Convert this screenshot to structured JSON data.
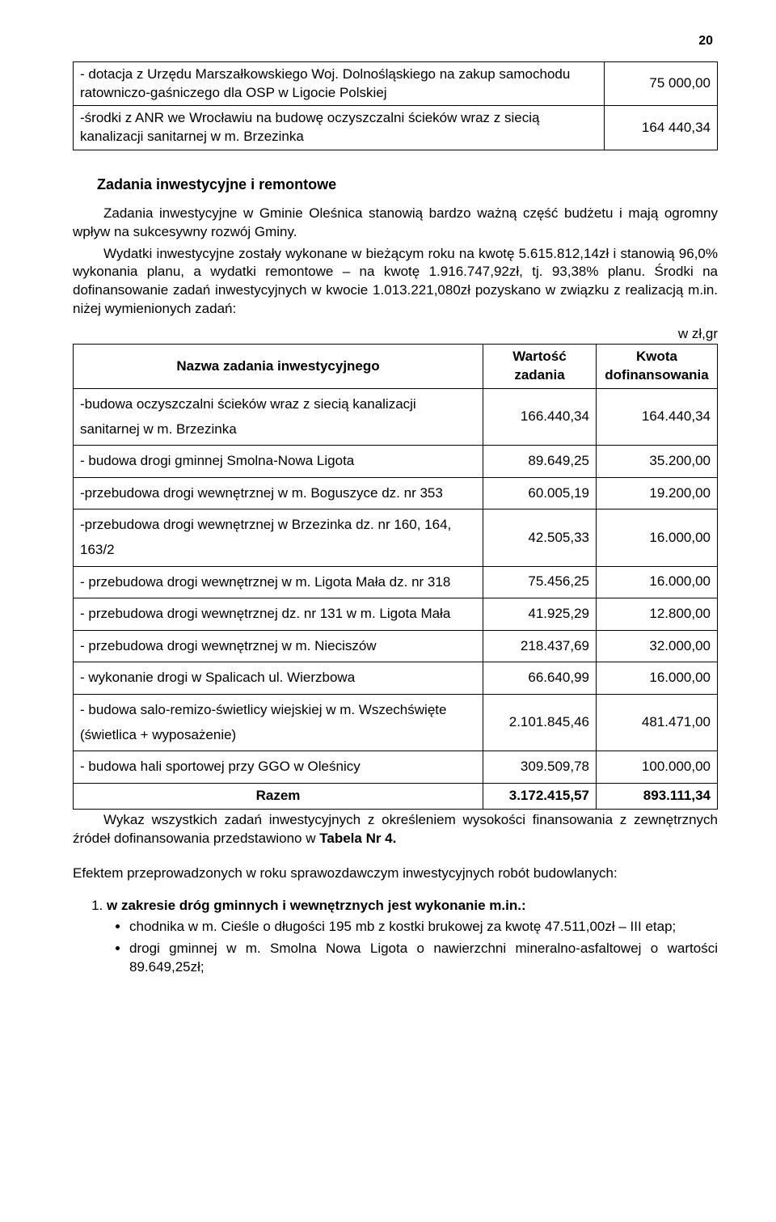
{
  "page_number": "20",
  "top_table": {
    "columns": [
      "desc",
      "amount"
    ],
    "column_align": [
      "left",
      "right"
    ],
    "rows": [
      {
        "desc": "- dotacja z Urzędu Marszałkowskiego Woj. Dolnośląskiego na zakup samochodu ratowniczo-gaśniczego dla OSP w Ligocie Polskiej",
        "amount": "75 000,00"
      },
      {
        "desc": "-środki z ANR we Wrocławiu na budowę oczyszczalni ścieków wraz z siecią kanalizacji sanitarnej w m. Brzezinka",
        "amount": "164 440,34"
      }
    ]
  },
  "section_heading": "Zadania inwestycyjne i remontowe",
  "paragraph1": "Zadania inwestycyjne w Gminie Oleśnica stanowią bardzo ważną część budżetu i mają ogromny wpływ na sukcesywny rozwój Gminy.",
  "paragraph2": "Wydatki inwestycyjne zostały wykonane w bieżącym roku na kwotę 5.615.812,14zł i stanowią 96,0% wykonania planu, a wydatki remontowe – na kwotę 1.916.747,92zł, tj. 93,38% planu. Środki na dofinansowanie zadań inwestycyjnych w kwocie 1.013.221,080zł pozyskano w związku z realizacją m.in. niżej wymienionych zadań:",
  "currency_label": "w zł,gr",
  "inv_table": {
    "headers": [
      "Nazwa zadania inwestycyjnego",
      "Wartość zadania",
      "Kwota dofinansowania"
    ],
    "column_align": [
      "center",
      "center",
      "center"
    ],
    "col_widths": [
      "auto",
      "140px",
      "140px"
    ],
    "rows": [
      {
        "name": "-budowa oczyszczalni ścieków wraz z siecią kanalizacji sanitarnej w m. Brzezinka",
        "value": "166.440,34",
        "kwota": "164.440,34"
      },
      {
        "name": "- budowa drogi gminnej Smolna-Nowa Ligota",
        "value": "89.649,25",
        "kwota": "35.200,00"
      },
      {
        "name": "-przebudowa drogi wewnętrznej w m. Boguszyce dz. nr 353",
        "value": "60.005,19",
        "kwota": "19.200,00"
      },
      {
        "name": "-przebudowa drogi wewnętrznej w Brzezinka dz. nr 160, 164, 163/2",
        "value": "42.505,33",
        "kwota": "16.000,00"
      },
      {
        "name": "- przebudowa drogi wewnętrznej w m. Ligota Mała dz. nr 318",
        "value": "75.456,25",
        "kwota": "16.000,00"
      },
      {
        "name": "- przebudowa drogi wewnętrznej dz. nr 131 w m. Ligota Mała",
        "value": "41.925,29",
        "kwota": "12.800,00"
      },
      {
        "name": "- przebudowa drogi wewnętrznej w m. Nieciszów",
        "value": "218.437,69",
        "kwota": "32.000,00"
      },
      {
        "name": "- wykonanie drogi w Spalicach ul. Wierzbowa",
        "value": "66.640,99",
        "kwota": "16.000,00"
      },
      {
        "name": "- budowa salo-remizo-świetlicy wiejskiej w m. Wszechświęte (świetlica + wyposażenie)",
        "value": "2.101.845,46",
        "kwota": "481.471,00"
      },
      {
        "name": "- budowa hali sportowej przy GGO w Oleśnicy",
        "value": "309.509,78",
        "kwota": "100.000,00"
      }
    ],
    "totals": {
      "label": "Razem",
      "value": "3.172.415,57",
      "kwota": "893.111,34"
    }
  },
  "after_para_pre": "Wykaz wszystkich zadań inwestycyjnych z określeniem wysokości finansowania z zewnętrznych źródeł dofinansowania  przedstawiono w ",
  "after_para_bold": "Tabela Nr 4.",
  "sub_para": "Efektem przeprowadzonych w roku sprawozdawczym inwestycyjnych robót budowlanych:",
  "list_item1_pre": "w zakresie dróg gminnych i wewnętrznych jest wykonanie m.in.:",
  "bullets": [
    "chodnika w m. Cieśle o długości 195 mb z kostki brukowej za kwotę 47.511,00zł – III etap;",
    "drogi gminnej w m. Smolna  Nowa Ligota o nawierzchni mineralno-asfaltowej o wartości 89.649,25zł;"
  ]
}
